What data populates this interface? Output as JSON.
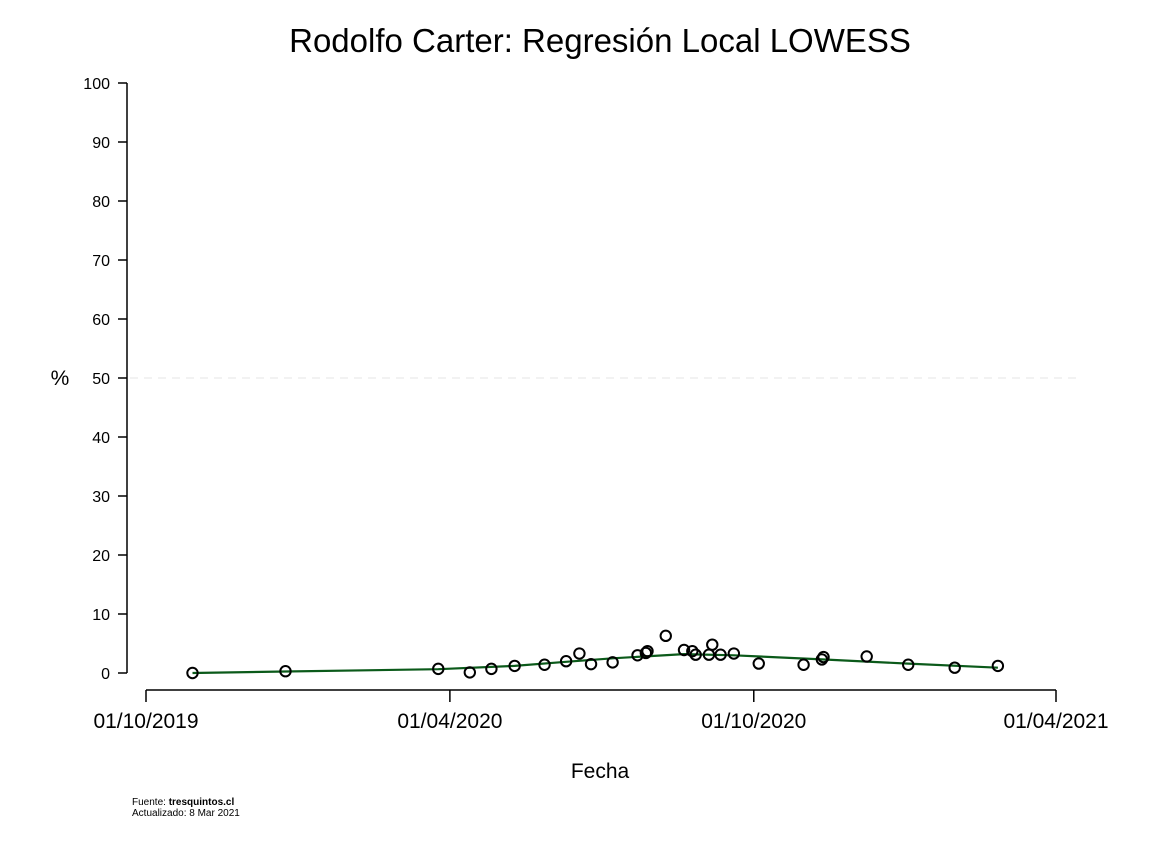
{
  "chart_data": {
    "type": "scatter",
    "title": "Rodolfo Carter: Regresión Local LOWESS",
    "xlabel": "Fecha",
    "ylabel": "%",
    "xlim": [
      "2019-10-01",
      "2021-04-01"
    ],
    "ylim": [
      0,
      100
    ],
    "x_ticks": [
      {
        "date": "2019-10-01",
        "label": "01/10/2019"
      },
      {
        "date": "2020-04-01",
        "label": "01/04/2020"
      },
      {
        "date": "2020-10-01",
        "label": "01/10/2020"
      },
      {
        "date": "2021-04-01",
        "label": "01/04/2021"
      }
    ],
    "y_ticks": [
      0,
      10,
      20,
      30,
      40,
      50,
      60,
      70,
      80,
      90,
      100
    ],
    "reference_line": {
      "y": 50,
      "style": "dashed"
    },
    "series": [
      {
        "kind": "points",
        "marker": "open-circle",
        "color": "#000000",
        "points": [
          {
            "x": "2019-10-29",
            "y": 0.0
          },
          {
            "x": "2019-12-24",
            "y": 0.3
          },
          {
            "x": "2020-03-25",
            "y": 0.7
          },
          {
            "x": "2020-04-13",
            "y": 0.1
          },
          {
            "x": "2020-04-26",
            "y": 0.7
          },
          {
            "x": "2020-05-10",
            "y": 1.2
          },
          {
            "x": "2020-05-28",
            "y": 1.4
          },
          {
            "x": "2020-06-10",
            "y": 2.0
          },
          {
            "x": "2020-06-18",
            "y": 3.3
          },
          {
            "x": "2020-06-25",
            "y": 1.5
          },
          {
            "x": "2020-07-08",
            "y": 1.8
          },
          {
            "x": "2020-07-23",
            "y": 3.0
          },
          {
            "x": "2020-07-28",
            "y": 3.4
          },
          {
            "x": "2020-07-29",
            "y": 3.7
          },
          {
            "x": "2020-08-09",
            "y": 6.3
          },
          {
            "x": "2020-08-20",
            "y": 3.9
          },
          {
            "x": "2020-08-25",
            "y": 3.7
          },
          {
            "x": "2020-08-27",
            "y": 3.1
          },
          {
            "x": "2020-09-04",
            "y": 3.1
          },
          {
            "x": "2020-09-06",
            "y": 4.8
          },
          {
            "x": "2020-09-11",
            "y": 3.1
          },
          {
            "x": "2020-09-19",
            "y": 3.3
          },
          {
            "x": "2020-10-04",
            "y": 1.6
          },
          {
            "x": "2020-10-31",
            "y": 1.4
          },
          {
            "x": "2020-11-11",
            "y": 2.3
          },
          {
            "x": "2020-11-12",
            "y": 2.7
          },
          {
            "x": "2020-12-08",
            "y": 2.8
          },
          {
            "x": "2021-01-02",
            "y": 1.4
          },
          {
            "x": "2021-01-30",
            "y": 0.9
          },
          {
            "x": "2021-02-25",
            "y": 1.2
          }
        ]
      },
      {
        "kind": "line",
        "color": "#0b5a1a",
        "points": [
          {
            "x": "2019-10-29",
            "y": 0.0
          },
          {
            "x": "2019-12-24",
            "y": 0.25
          },
          {
            "x": "2020-03-25",
            "y": 0.65
          },
          {
            "x": "2020-05-10",
            "y": 1.2
          },
          {
            "x": "2020-06-10",
            "y": 1.9
          },
          {
            "x": "2020-07-08",
            "y": 2.5
          },
          {
            "x": "2020-08-20",
            "y": 3.2
          },
          {
            "x": "2020-09-19",
            "y": 3.0
          },
          {
            "x": "2020-11-11",
            "y": 2.3
          },
          {
            "x": "2021-01-02",
            "y": 1.6
          },
          {
            "x": "2021-02-25",
            "y": 0.9
          }
        ]
      }
    ]
  },
  "footer": {
    "source_prefix": "Fuente: ",
    "source_name": "tresquintos.cl",
    "updated": "Actualizado: 8 Mar 2021"
  }
}
